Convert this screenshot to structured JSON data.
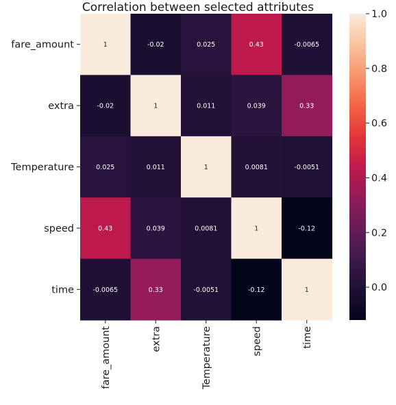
{
  "chart_data": {
    "type": "heatmap",
    "title": "Correlation between selected attributes",
    "rows": [
      "fare_amount",
      "extra",
      "Temperature",
      "speed",
      "time"
    ],
    "columns": [
      "fare_amount",
      "extra",
      "Temperature",
      "speed",
      "time"
    ],
    "values": [
      [
        1,
        -0.02,
        0.025,
        0.43,
        -0.0065
      ],
      [
        -0.02,
        1,
        0.011,
        0.039,
        0.33
      ],
      [
        0.025,
        0.011,
        1,
        0.0081,
        -0.0051
      ],
      [
        0.43,
        0.039,
        0.0081,
        1,
        -0.12
      ],
      [
        -0.0065,
        0.33,
        -0.0051,
        -0.12,
        1
      ]
    ],
    "labels": [
      [
        "1",
        "-0.02",
        "0.025",
        "0.43",
        "-0.0065"
      ],
      [
        "-0.02",
        "1",
        "0.011",
        "0.039",
        "0.33"
      ],
      [
        "0.025",
        "0.011",
        "1",
        "0.0081",
        "-0.0051"
      ],
      [
        "0.43",
        "0.039",
        "0.0081",
        "1",
        "-0.12"
      ],
      [
        "-0.0065",
        "0.33",
        "-0.0051",
        "-0.12",
        "1"
      ]
    ],
    "colormap": "rocket",
    "colorbar": {
      "range": [
        -0.12,
        1.0
      ],
      "ticks": [
        0.0,
        0.2,
        0.4,
        0.6,
        0.8,
        1.0
      ],
      "tick_labels": [
        "0.0",
        "0.2",
        "0.4",
        "0.6",
        "0.8",
        "1.0"
      ]
    }
  }
}
